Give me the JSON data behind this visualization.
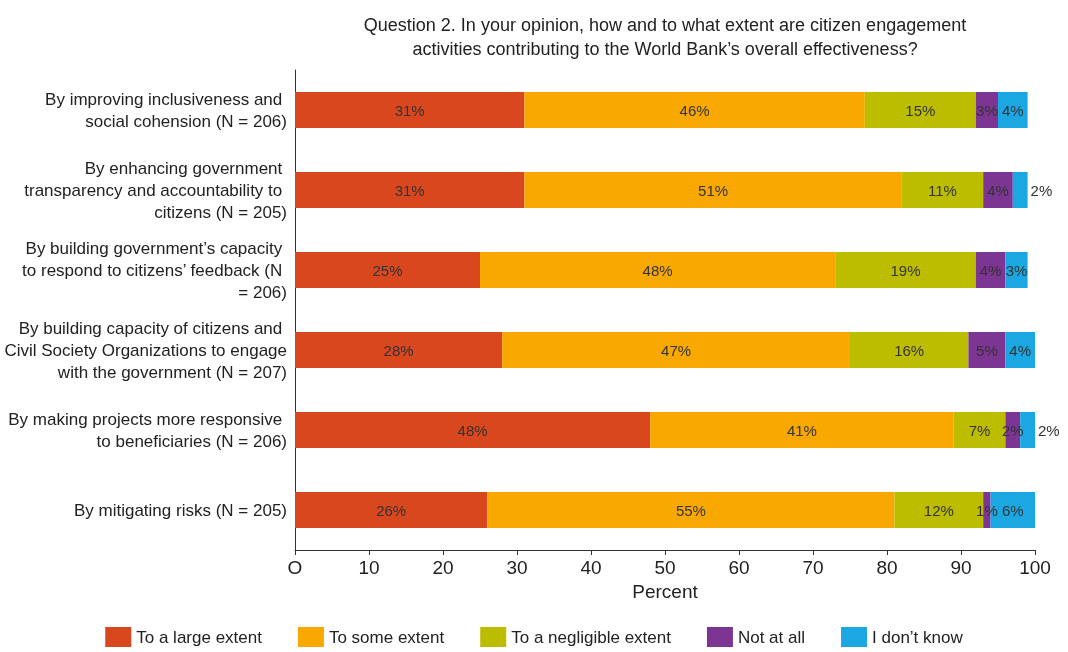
{
  "chart_data": {
    "type": "bar",
    "orientation": "horizontal",
    "stacked": true,
    "title": "Question 2. In your opinion, how and to what extent are citizen engagement\nactivities contributing to the World Bank’s overall effectiveness?",
    "xlabel": "Percent",
    "categories": [
      "By improving inclusiveness and social cohension (N = 206)",
      "By enhancing government transparency and accountability to citizens (N = 205)",
      "By building government’s capacity to respond to citizens’ feedback (N = 206)",
      "By building capacity of citizens and Civil Society Organizations to engage with the government (N = 207)",
      "By making projects more responsive to beneficiaries (N = 206)",
      "By mitigating risks (N = 205)"
    ],
    "series": [
      {
        "name": "To a large extent",
        "color": "#d9471f",
        "values": [
          31,
          31,
          25,
          28,
          48,
          26
        ],
        "value_labels": [
          "31%",
          "31%",
          "25%",
          "28%",
          "48%",
          "26%"
        ]
      },
      {
        "name": "To some extent",
        "color": "#f9a800",
        "values": [
          46,
          51,
          48,
          47,
          41,
          55
        ],
        "value_labels": [
          "46%",
          "51%",
          "48%",
          "47%",
          "41%",
          "55%"
        ]
      },
      {
        "name": "To a negligible extent",
        "color": "#bdbd00",
        "values": [
          15,
          11,
          19,
          16,
          7,
          12
        ],
        "value_labels": [
          "15%",
          "11%",
          "19%",
          "16%",
          "7%",
          "12%"
        ]
      },
      {
        "name": "Not at all",
        "color": "#7d3594",
        "values": [
          3,
          4,
          4,
          5,
          2,
          1
        ],
        "value_labels": [
          "3%",
          "4%",
          "4%",
          "5%",
          "2%",
          "1%"
        ]
      },
      {
        "name": "I don’t know",
        "color": "#1ba7e1",
        "values": [
          4,
          2,
          3,
          4,
          2,
          6
        ],
        "value_labels": [
          "4%",
          "2%",
          "3%",
          "4%",
          "2%",
          "6%"
        ]
      }
    ],
    "xlim": [
      0,
      100
    ],
    "xticks": [
      {
        "value": 0,
        "label": "O"
      },
      10,
      20,
      30,
      40,
      50,
      60,
      70,
      80,
      90,
      100
    ],
    "grid": false,
    "legend": "bottom"
  }
}
